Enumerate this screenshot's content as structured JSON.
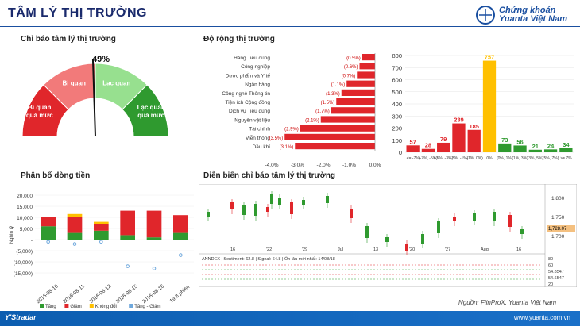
{
  "header": {
    "title": "TÂM LÝ THỊ TRƯỜNG",
    "logo_line1": "Chứng khoán",
    "logo_line2": "Yuanta Việt Nam"
  },
  "gauge": {
    "title": "Chỉ báo tâm lý thị trường",
    "value_label": "49%",
    "value": 49,
    "segments": [
      {
        "label": "Bi quan\nquá mức",
        "color": "#e0262b"
      },
      {
        "label": "Bi quan",
        "color": "#f27a7a"
      },
      {
        "label": "Lạc quan",
        "color": "#97e08f"
      },
      {
        "label": "Lạc quan\nquá mức",
        "color": "#2f9a2f"
      }
    ]
  },
  "sections": {
    "breadth_title": "Độ rộng thị trường",
    "flow_title": "Phân bổ dòng tiền",
    "trend_title": "Diễn biến chỉ báo tâm lý thị trường"
  },
  "chart_data": [
    {
      "type": "bar",
      "orientation": "horizontal",
      "categories": [
        "Hàng Tiêu dùng",
        "Công nghiệp",
        "Dược phẩm và Y tế",
        "Ngân hàng",
        "Công nghệ Thông tin",
        "Tiện ích Cộng đồng",
        "Dịch vụ Tiêu dùng",
        "Nguyên vật liệu",
        "Tài chính",
        "Viễn thông",
        "Dầu khí"
      ],
      "values": [
        -0.5,
        -0.6,
        -0.7,
        -1.1,
        -1.3,
        -1.5,
        -1.7,
        -2.1,
        -2.9,
        -3.5,
        -3.1
      ],
      "labels": [
        "(0.5%)",
        "(0.6%)",
        "(0.7%)",
        "(1.1%)",
        "(1.3%)",
        "(1.5%)",
        "(1.7%)",
        "(2.1%)",
        "(2.9%)",
        "(3.5%)",
        "(3.1%)"
      ],
      "xticks": [
        "-4.0%",
        "-3.0%",
        "-2.0%",
        "-1.0%",
        "0.0%"
      ],
      "xlim": [
        -4,
        0
      ],
      "color": "#e0262b"
    },
    {
      "type": "bar",
      "categories": [
        "<= -7%",
        "(-7%, -5%)",
        "(-5%, -3%)",
        "(-3%, -1%)",
        "(-1%, 0%)",
        "0%",
        "(0%, 1%)",
        "(1%, 3%)",
        "(3%, 5%)",
        "(5%, 7%)",
        ">= 7%"
      ],
      "values": [
        57,
        28,
        79,
        239,
        185,
        757,
        73,
        56,
        21,
        24,
        34
      ],
      "colors": [
        "#e0262b",
        "#e0262b",
        "#e0262b",
        "#e0262b",
        "#e0262b",
        "#ffc000",
        "#2f9a2f",
        "#2f9a2f",
        "#2f9a2f",
        "#2f9a2f",
        "#2f9a2f"
      ],
      "yticks": [
        0,
        100,
        200,
        300,
        400,
        500,
        600,
        700,
        800
      ],
      "ylim": [
        0,
        800
      ]
    },
    {
      "type": "bar",
      "stacked": true,
      "categories": [
        "2016-08-10",
        "2016-08-11",
        "2016-08-12",
        "2016-08-15",
        "2016-08-16",
        "19.8 phiên"
      ],
      "series": [
        {
          "name": "Tăng",
          "color": "#2f9a2f",
          "values": [
            6,
            3,
            4,
            2,
            1,
            3
          ]
        },
        {
          "name": "Giảm",
          "color": "#e0262b",
          "values": [
            4,
            7,
            3,
            11,
            12,
            8
          ]
        },
        {
          "name": "Không đổi",
          "color": "#ffc000",
          "values": [
            0,
            1.5,
            1,
            0,
            0,
            0
          ]
        },
        {
          "name": "Tăng - Giảm",
          "color": "#6fa8dc",
          "values": [
            -1,
            -2,
            -1,
            -12,
            -13,
            -7
          ]
        }
      ],
      "yticks": [
        "(15,000)",
        "(10,000)",
        "(5,000)",
        "-",
        "5,000",
        "10,000",
        "15,000",
        "20,000"
      ],
      "ylabel": "Nghìn tỷ",
      "ylim": [
        -15,
        20
      ]
    },
    {
      "type": "line",
      "right_ticks": [
        "1,800",
        "1,750",
        "1,700"
      ],
      "last_label": "1,728.07",
      "indicator_label": "ANNDEX | Sentiment: 62.8 | Signal: 64.8 | Ổn lâu mới nhất: 14/08/18",
      "indicator_ticks": [
        "80",
        "60",
        "54.8547",
        "54.6547",
        "20"
      ],
      "x_ticks": [
        "16",
        "'22",
        "'29",
        "Jul",
        "13",
        "'20",
        "'27",
        "Aug",
        "16"
      ]
    }
  ],
  "footer": {
    "left": "Y'Stradar",
    "right": "www.yuanta.com.vn",
    "source": "Nguồn: FiinProX, Yuanta Việt Nam"
  }
}
